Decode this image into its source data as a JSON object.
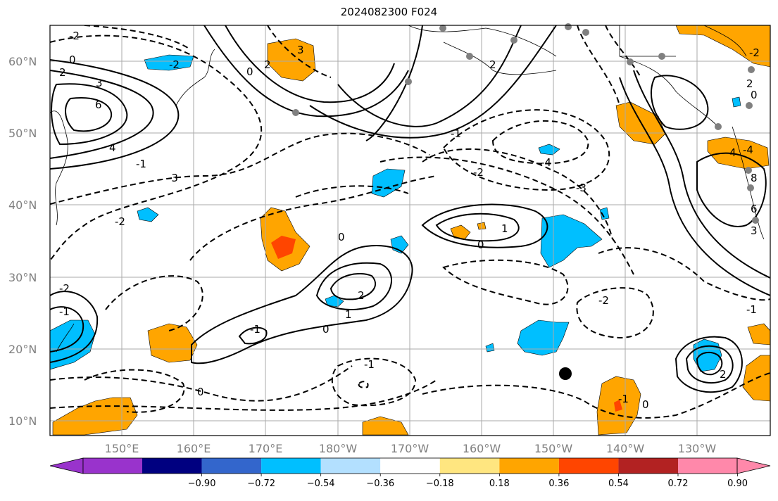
{
  "title": "2024082300 F024",
  "lat_labels": [
    "60°N",
    "50°N",
    "40°N",
    "30°N",
    "20°N",
    "10°N"
  ],
  "lon_labels": [
    "150°E",
    "160°E",
    "170°E",
    "180°W",
    "170°W",
    "160°W",
    "150°W",
    "140°W",
    "130°W"
  ],
  "colorbar": {
    "colors": [
      "#9933cc",
      "#000080",
      "#3366cc",
      "#00bfff",
      "#b3e0ff",
      "#ffffff",
      "#ffe680",
      "#ffa500",
      "#ff4500",
      "#b22222",
      "#ff88aa"
    ],
    "labels": [
      "−0.90",
      "−0.72",
      "−0.54",
      "−0.36",
      "−0.18",
      "0.18",
      "0.36",
      "0.54",
      "0.72",
      "0.90"
    ]
  },
  "contour_labels": [
    "-2",
    "0",
    "2",
    "3",
    "6",
    "4",
    "-3",
    "-2",
    "-1",
    "-2",
    "0",
    "3",
    "2",
    "2",
    "-1",
    "-4",
    "-2",
    "-3",
    "-2",
    "0",
    "1",
    "0",
    "2",
    "1",
    "-1",
    "0",
    "-1",
    "0",
    "-2",
    "-1",
    "2",
    "-1",
    "0",
    "4",
    "2",
    "0",
    "-4",
    "8",
    "6",
    "3",
    "-2",
    "-1"
  ],
  "marker": "storm-center"
}
